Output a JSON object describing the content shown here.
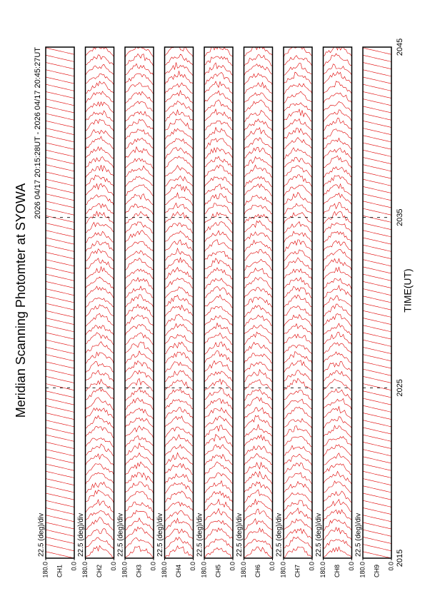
{
  "chart_data": {
    "type": "scan-panels",
    "title": "Meridian Scanning Photomter at SYOWA",
    "subtitle": "2026 04/17 20:15:28UT - 2026 04/17 20:45:27UT",
    "xlabel": "TIME(UT)",
    "xlim": [
      2015,
      2045
    ],
    "xticks": [
      2015,
      2025,
      2035,
      2045
    ],
    "color": "#e00000",
    "panels": [
      {
        "label": "CH1",
        "scale": "22.5 (deg)/div",
        "ylim": [
          0,
          180
        ],
        "yticks": [
          {
            "value": 0,
            "label": "0.0"
          },
          {
            "value": 180,
            "label": "180.0"
          }
        ]
      },
      {
        "label": "CH2",
        "scale": "22.5 (deg)/div",
        "ylim": [
          0,
          180
        ],
        "yticks": [
          {
            "value": 0,
            "label": "0.0"
          },
          {
            "value": 180,
            "label": "180.0"
          }
        ]
      },
      {
        "label": "CH3",
        "scale": "22.5 (deg)/div",
        "ylim": [
          0,
          180
        ],
        "yticks": [
          {
            "value": 0,
            "label": "0.0"
          },
          {
            "value": 180,
            "label": "180.0"
          }
        ]
      },
      {
        "label": "CH4",
        "scale": "22.5 (deg)/div",
        "ylim": [
          0,
          180
        ],
        "yticks": [
          {
            "value": 0,
            "label": "0.0"
          },
          {
            "value": 180,
            "label": "180.0"
          }
        ]
      },
      {
        "label": "CH5",
        "scale": "22.5 (deg)/div",
        "ylim": [
          0,
          180
        ],
        "yticks": [
          {
            "value": 0,
            "label": "0.0"
          },
          {
            "value": 180,
            "label": "180.0"
          }
        ]
      },
      {
        "label": "CH6",
        "scale": "22.5 (deg)/div",
        "ylim": [
          0,
          180
        ],
        "yticks": [
          {
            "value": 0,
            "label": "0.0"
          },
          {
            "value": 180,
            "label": "180.0"
          }
        ]
      },
      {
        "label": "CH7",
        "scale": "22.5 (deg)/div",
        "ylim": [
          0,
          180
        ],
        "yticks": [
          {
            "value": 0,
            "label": "0.0"
          },
          {
            "value": 180,
            "label": "180.0"
          }
        ]
      },
      {
        "label": "CH8",
        "scale": "22.5 (deg)/div",
        "ylim": [
          0,
          180
        ],
        "yticks": [
          {
            "value": 0,
            "label": "0.0"
          },
          {
            "value": 180,
            "label": "180.0"
          }
        ]
      },
      {
        "label": "CH9",
        "scale": "22.5 (deg)/div",
        "ylim": [
          0,
          180
        ],
        "yticks": [
          {
            "value": 0,
            "label": "0.0"
          },
          {
            "value": 180,
            "label": "180.0"
          }
        ]
      }
    ]
  }
}
